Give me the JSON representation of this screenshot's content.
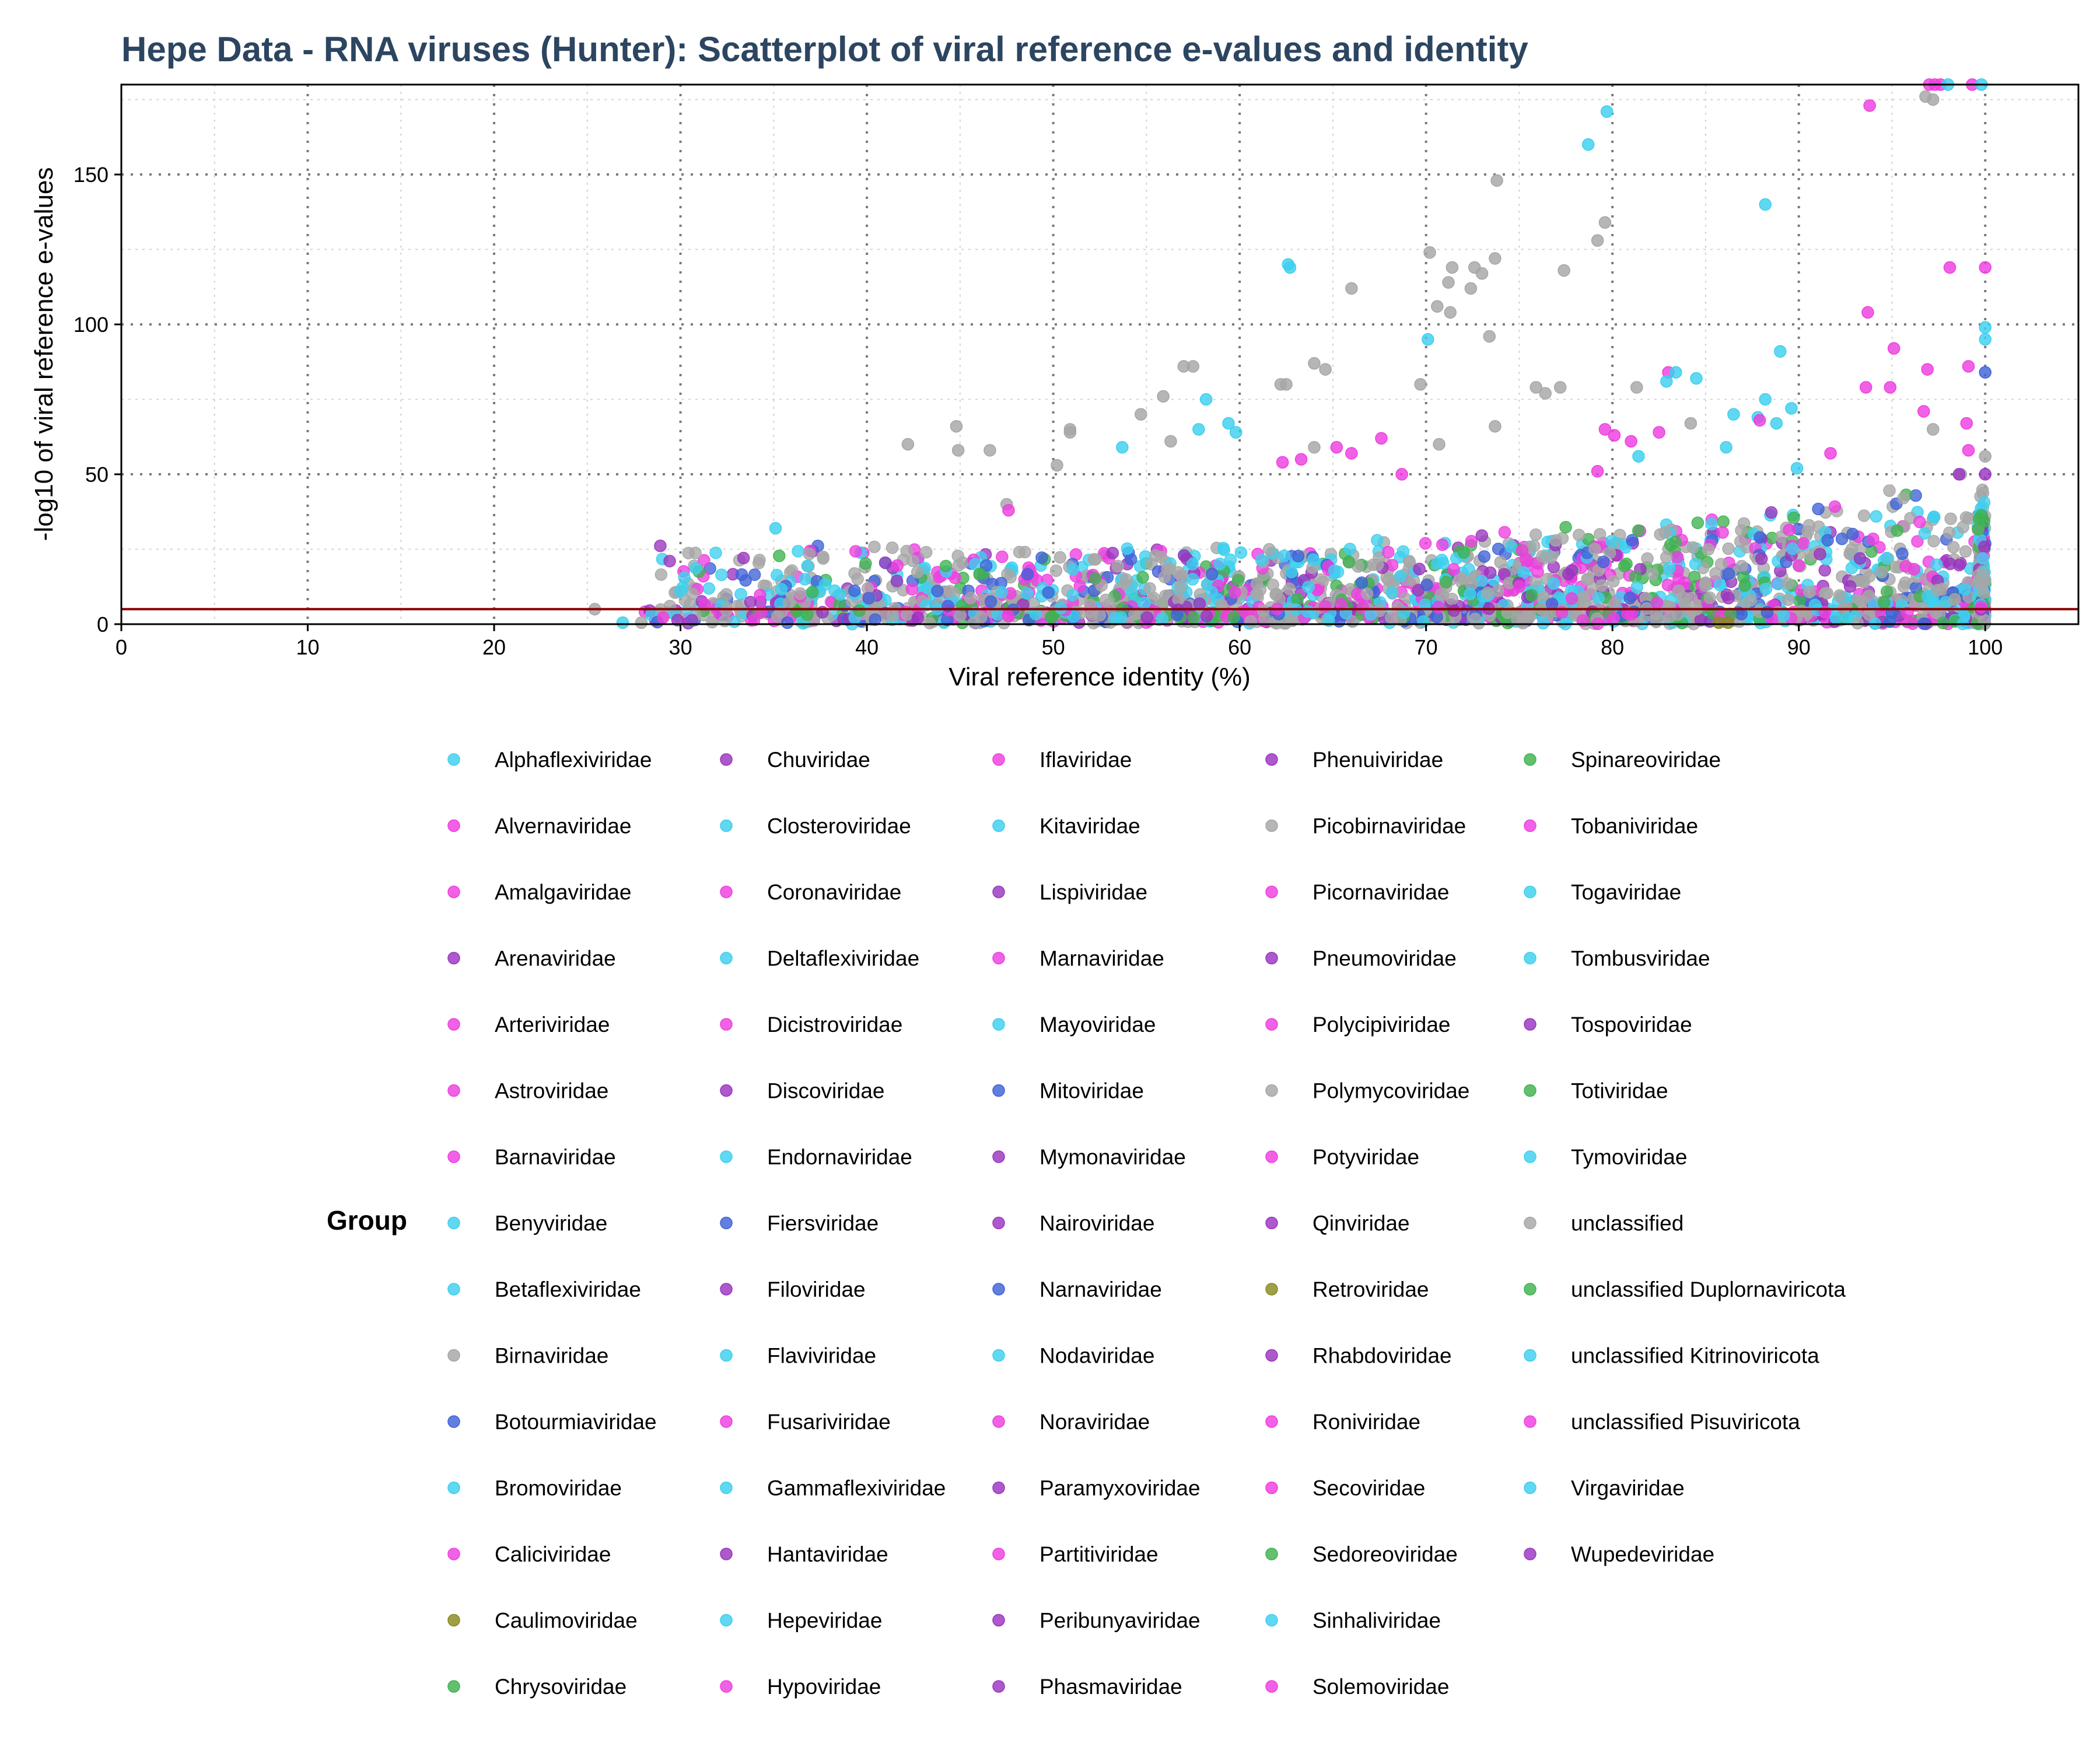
{
  "chart_data": {
    "type": "scatter",
    "title": "Hepe Data - RNA viruses (Hunter): Scatterplot of viral reference e-values and identity",
    "xlabel": "Viral reference identity (%)",
    "ylabel": "-log10 of viral reference e-values",
    "xlim": [
      0,
      105
    ],
    "ylim": [
      0,
      180
    ],
    "x_ticks": [
      "0",
      "10",
      "20",
      "30",
      "40",
      "50",
      "60",
      "70",
      "80",
      "90",
      "100"
    ],
    "y_ticks": [
      "0",
      "50",
      "100",
      "150"
    ],
    "threshold_line": {
      "y": 5,
      "color": "#8b0000"
    },
    "grid": true,
    "legend_title": "Group",
    "legend_position": "bottom",
    "colors": {
      "cyan": "#3dcfee",
      "magenta": "#ee3ee0",
      "purple": "#9a35bf",
      "gray": "#a6a6a6",
      "blue": "#3f63d8",
      "green": "#3fb24f",
      "olive": "#8a8a1f"
    },
    "legend": [
      {
        "name": "Alphaflexiviridae",
        "color": "cyan"
      },
      {
        "name": "Alvernaviridae",
        "color": "magenta"
      },
      {
        "name": "Amalgaviridae",
        "color": "magenta"
      },
      {
        "name": "Arenaviridae",
        "color": "purple"
      },
      {
        "name": "Arteriviridae",
        "color": "magenta"
      },
      {
        "name": "Astroviridae",
        "color": "magenta"
      },
      {
        "name": "Barnaviridae",
        "color": "magenta"
      },
      {
        "name": "Benyviridae",
        "color": "cyan"
      },
      {
        "name": "Betaflexiviridae",
        "color": "cyan"
      },
      {
        "name": "Birnaviridae",
        "color": "gray"
      },
      {
        "name": "Botourmiaviridae",
        "color": "blue"
      },
      {
        "name": "Bromoviridae",
        "color": "cyan"
      },
      {
        "name": "Caliciviridae",
        "color": "magenta"
      },
      {
        "name": "Caulimoviridae",
        "color": "olive"
      },
      {
        "name": "Chrysoviridae",
        "color": "green"
      },
      {
        "name": "Chuviridae",
        "color": "purple"
      },
      {
        "name": "Closteroviridae",
        "color": "cyan"
      },
      {
        "name": "Coronaviridae",
        "color": "magenta"
      },
      {
        "name": "Deltaflexiviridae",
        "color": "cyan"
      },
      {
        "name": "Dicistroviridae",
        "color": "magenta"
      },
      {
        "name": "Discoviridae",
        "color": "purple"
      },
      {
        "name": "Endornaviridae",
        "color": "cyan"
      },
      {
        "name": "Fiersviridae",
        "color": "blue"
      },
      {
        "name": "Filoviridae",
        "color": "purple"
      },
      {
        "name": "Flaviviridae",
        "color": "cyan"
      },
      {
        "name": "Fusariviridae",
        "color": "magenta"
      },
      {
        "name": "Gammaflexiviridae",
        "color": "cyan"
      },
      {
        "name": "Hantaviridae",
        "color": "purple"
      },
      {
        "name": "Hepeviridae",
        "color": "cyan"
      },
      {
        "name": "Hypoviridae",
        "color": "magenta"
      },
      {
        "name": "Iflaviridae",
        "color": "magenta"
      },
      {
        "name": "Kitaviridae",
        "color": "cyan"
      },
      {
        "name": "Lispiviridae",
        "color": "purple"
      },
      {
        "name": "Marnaviridae",
        "color": "magenta"
      },
      {
        "name": "Mayoviridae",
        "color": "cyan"
      },
      {
        "name": "Mitoviridae",
        "color": "blue"
      },
      {
        "name": "Mymonaviridae",
        "color": "purple"
      },
      {
        "name": "Nairoviridae",
        "color": "purple"
      },
      {
        "name": "Narnaviridae",
        "color": "blue"
      },
      {
        "name": "Nodaviridae",
        "color": "cyan"
      },
      {
        "name": "Noraviridae",
        "color": "magenta"
      },
      {
        "name": "Paramyxoviridae",
        "color": "purple"
      },
      {
        "name": "Partitiviridae",
        "color": "magenta"
      },
      {
        "name": "Peribunyaviridae",
        "color": "purple"
      },
      {
        "name": "Phasmaviridae",
        "color": "purple"
      },
      {
        "name": "Phenuiviridae",
        "color": "purple"
      },
      {
        "name": "Picobirnaviridae",
        "color": "gray"
      },
      {
        "name": "Picornaviridae",
        "color": "magenta"
      },
      {
        "name": "Pneumoviridae",
        "color": "purple"
      },
      {
        "name": "Polycipiviridae",
        "color": "magenta"
      },
      {
        "name": "Polymycoviridae",
        "color": "gray"
      },
      {
        "name": "Potyviridae",
        "color": "magenta"
      },
      {
        "name": "Qinviridae",
        "color": "purple"
      },
      {
        "name": "Retroviridae",
        "color": "olive"
      },
      {
        "name": "Rhabdoviridae",
        "color": "purple"
      },
      {
        "name": "Roniviridae",
        "color": "magenta"
      },
      {
        "name": "Secoviridae",
        "color": "magenta"
      },
      {
        "name": "Sedoreoviridae",
        "color": "green"
      },
      {
        "name": "Sinhaliviridae",
        "color": "cyan"
      },
      {
        "name": "Solemoviridae",
        "color": "magenta"
      },
      {
        "name": "Spinareoviridae",
        "color": "green"
      },
      {
        "name": "Tobaniviridae",
        "color": "magenta"
      },
      {
        "name": "Togaviridae",
        "color": "cyan"
      },
      {
        "name": "Tombusviridae",
        "color": "cyan"
      },
      {
        "name": "Tospoviridae",
        "color": "purple"
      },
      {
        "name": "Totiviridae",
        "color": "green"
      },
      {
        "name": "Tymoviridae",
        "color": "cyan"
      },
      {
        "name": "unclassified",
        "color": "gray"
      },
      {
        "name": "unclassified Duplornaviricota",
        "color": "green"
      },
      {
        "name": "unclassified Kitrinoviricota",
        "color": "cyan"
      },
      {
        "name": "unclassified Pisuviricota",
        "color": "magenta"
      },
      {
        "name": "Virgaviridae",
        "color": "cyan"
      },
      {
        "name": "Wupedeviridae",
        "color": "purple"
      }
    ],
    "highlight_points": [
      {
        "x": 97.0,
        "y": 180,
        "color": "magenta"
      },
      {
        "x": 97.3,
        "y": 180,
        "color": "magenta"
      },
      {
        "x": 97.6,
        "y": 180,
        "color": "magenta"
      },
      {
        "x": 98.0,
        "y": 180,
        "color": "cyan"
      },
      {
        "x": 99.3,
        "y": 180,
        "color": "magenta"
      },
      {
        "x": 99.8,
        "y": 180,
        "color": "cyan"
      },
      {
        "x": 96.8,
        "y": 176,
        "color": "gray"
      },
      {
        "x": 97.2,
        "y": 175,
        "color": "gray"
      },
      {
        "x": 93.8,
        "y": 173,
        "color": "magenta"
      },
      {
        "x": 79.7,
        "y": 171,
        "color": "cyan"
      },
      {
        "x": 78.7,
        "y": 160,
        "color": "cyan"
      },
      {
        "x": 73.8,
        "y": 148,
        "color": "gray"
      },
      {
        "x": 88.2,
        "y": 140,
        "color": "cyan"
      },
      {
        "x": 79.6,
        "y": 134,
        "color": "gray"
      },
      {
        "x": 79.2,
        "y": 128,
        "color": "gray"
      },
      {
        "x": 70.2,
        "y": 124,
        "color": "gray"
      },
      {
        "x": 73.7,
        "y": 122,
        "color": "gray"
      },
      {
        "x": 62.6,
        "y": 120,
        "color": "cyan"
      },
      {
        "x": 62.7,
        "y": 119,
        "color": "cyan"
      },
      {
        "x": 71.4,
        "y": 119,
        "color": "gray"
      },
      {
        "x": 72.6,
        "y": 119,
        "color": "gray"
      },
      {
        "x": 98.1,
        "y": 119,
        "color": "magenta"
      },
      {
        "x": 100.0,
        "y": 119,
        "color": "magenta"
      },
      {
        "x": 77.4,
        "y": 118,
        "color": "gray"
      },
      {
        "x": 73.0,
        "y": 117,
        "color": "gray"
      },
      {
        "x": 71.2,
        "y": 114,
        "color": "gray"
      },
      {
        "x": 72.4,
        "y": 112,
        "color": "gray"
      },
      {
        "x": 66.0,
        "y": 112,
        "color": "gray"
      },
      {
        "x": 70.6,
        "y": 106,
        "color": "gray"
      },
      {
        "x": 71.3,
        "y": 104,
        "color": "gray"
      },
      {
        "x": 93.7,
        "y": 104,
        "color": "magenta"
      },
      {
        "x": 100.0,
        "y": 99,
        "color": "cyan"
      },
      {
        "x": 73.4,
        "y": 96,
        "color": "gray"
      },
      {
        "x": 70.1,
        "y": 95,
        "color": "cyan"
      },
      {
        "x": 100.0,
        "y": 95,
        "color": "cyan"
      },
      {
        "x": 95.1,
        "y": 92,
        "color": "magenta"
      },
      {
        "x": 89.0,
        "y": 91,
        "color": "cyan"
      },
      {
        "x": 64.0,
        "y": 87,
        "color": "gray"
      },
      {
        "x": 57.0,
        "y": 86,
        "color": "gray"
      },
      {
        "x": 57.5,
        "y": 86,
        "color": "gray"
      },
      {
        "x": 64.6,
        "y": 85,
        "color": "gray"
      },
      {
        "x": 99.1,
        "y": 86,
        "color": "magenta"
      },
      {
        "x": 83.0,
        "y": 84,
        "color": "magenta"
      },
      {
        "x": 83.4,
        "y": 84,
        "color": "cyan"
      },
      {
        "x": 100.0,
        "y": 84,
        "color": "blue"
      },
      {
        "x": 96.9,
        "y": 85,
        "color": "magenta"
      },
      {
        "x": 84.5,
        "y": 82,
        "color": "cyan"
      },
      {
        "x": 82.9,
        "y": 81,
        "color": "cyan"
      },
      {
        "x": 62.2,
        "y": 80,
        "color": "gray"
      },
      {
        "x": 62.5,
        "y": 80,
        "color": "gray"
      },
      {
        "x": 69.7,
        "y": 80,
        "color": "gray"
      },
      {
        "x": 75.9,
        "y": 79,
        "color": "gray"
      },
      {
        "x": 77.2,
        "y": 79,
        "color": "gray"
      },
      {
        "x": 76.4,
        "y": 77,
        "color": "gray"
      },
      {
        "x": 81.3,
        "y": 79,
        "color": "gray"
      },
      {
        "x": 93.6,
        "y": 79,
        "color": "magenta"
      },
      {
        "x": 94.9,
        "y": 79,
        "color": "magenta"
      },
      {
        "x": 55.9,
        "y": 76,
        "color": "gray"
      },
      {
        "x": 58.2,
        "y": 75,
        "color": "cyan"
      },
      {
        "x": 88.2,
        "y": 75,
        "color": "cyan"
      },
      {
        "x": 89.6,
        "y": 72,
        "color": "cyan"
      },
      {
        "x": 96.7,
        "y": 71,
        "color": "magenta"
      },
      {
        "x": 54.7,
        "y": 70,
        "color": "gray"
      },
      {
        "x": 86.5,
        "y": 70,
        "color": "cyan"
      },
      {
        "x": 87.8,
        "y": 69,
        "color": "cyan"
      },
      {
        "x": 87.9,
        "y": 68,
        "color": "magenta"
      },
      {
        "x": 88.8,
        "y": 67,
        "color": "cyan"
      },
      {
        "x": 59.4,
        "y": 67,
        "color": "cyan"
      },
      {
        "x": 73.7,
        "y": 66,
        "color": "gray"
      },
      {
        "x": 44.8,
        "y": 66,
        "color": "gray"
      },
      {
        "x": 79.6,
        "y": 65,
        "color": "magenta"
      },
      {
        "x": 84.2,
        "y": 67,
        "color": "gray"
      },
      {
        "x": 80.1,
        "y": 63,
        "color": "magenta"
      },
      {
        "x": 82.5,
        "y": 64,
        "color": "magenta"
      },
      {
        "x": 97.2,
        "y": 65,
        "color": "gray"
      },
      {
        "x": 50.9,
        "y": 65,
        "color": "gray"
      },
      {
        "x": 50.9,
        "y": 64,
        "color": "gray"
      },
      {
        "x": 59.8,
        "y": 64,
        "color": "cyan"
      },
      {
        "x": 56.3,
        "y": 61,
        "color": "gray"
      },
      {
        "x": 57.8,
        "y": 65,
        "color": "cyan"
      },
      {
        "x": 67.6,
        "y": 62,
        "color": "magenta"
      },
      {
        "x": 81.0,
        "y": 61,
        "color": "magenta"
      },
      {
        "x": 42.2,
        "y": 60,
        "color": "gray"
      },
      {
        "x": 70.7,
        "y": 60,
        "color": "gray"
      },
      {
        "x": 53.7,
        "y": 59,
        "color": "cyan"
      },
      {
        "x": 64.0,
        "y": 59,
        "color": "gray"
      },
      {
        "x": 65.2,
        "y": 59,
        "color": "magenta"
      },
      {
        "x": 86.1,
        "y": 59,
        "color": "cyan"
      },
      {
        "x": 99.1,
        "y": 58,
        "color": "magenta"
      },
      {
        "x": 91.7,
        "y": 57,
        "color": "magenta"
      },
      {
        "x": 44.9,
        "y": 58,
        "color": "gray"
      },
      {
        "x": 46.6,
        "y": 58,
        "color": "gray"
      },
      {
        "x": 81.4,
        "y": 56,
        "color": "cyan"
      },
      {
        "x": 62.3,
        "y": 54,
        "color": "magenta"
      },
      {
        "x": 63.3,
        "y": 55,
        "color": "magenta"
      },
      {
        "x": 66.0,
        "y": 57,
        "color": "magenta"
      },
      {
        "x": 100.0,
        "y": 56,
        "color": "gray"
      },
      {
        "x": 99.0,
        "y": 67,
        "color": "magenta"
      },
      {
        "x": 50.2,
        "y": 53,
        "color": "gray"
      },
      {
        "x": 89.9,
        "y": 52,
        "color": "cyan"
      },
      {
        "x": 79.2,
        "y": 51,
        "color": "magenta"
      },
      {
        "x": 68.7,
        "y": 50,
        "color": "magenta"
      },
      {
        "x": 98.6,
        "y": 50,
        "color": "purple"
      },
      {
        "x": 100.0,
        "y": 50,
        "color": "purple"
      },
      {
        "x": 47.5,
        "y": 40,
        "color": "gray"
      },
      {
        "x": 47.6,
        "y": 38,
        "color": "magenta"
      },
      {
        "x": 35.1,
        "y": 32,
        "color": "cyan"
      },
      {
        "x": 30.0,
        "y": 11,
        "color": "cyan"
      },
      {
        "x": 25.4,
        "y": 5,
        "color": "gray"
      },
      {
        "x": 26.9,
        "y": 0.5,
        "color": "cyan"
      },
      {
        "x": 27.9,
        "y": 0.5,
        "color": "gray"
      },
      {
        "x": 85.7,
        "y": 0.5,
        "color": "olive"
      },
      {
        "x": 86.2,
        "y": 0.5,
        "color": "olive"
      },
      {
        "x": 92.0,
        "y": 2,
        "color": "cyan"
      },
      {
        "x": 92.6,
        "y": 2,
        "color": "cyan"
      },
      {
        "x": 91.4,
        "y": 4,
        "color": "magenta"
      },
      {
        "x": 88.3,
        "y": 4,
        "color": "blue"
      }
    ],
    "dense_band": {
      "description_x": [
        28,
        100
      ],
      "description_y": [
        0,
        50
      ],
      "color_mix": [
        "gray",
        "gray",
        "gray",
        "gray",
        "cyan",
        "cyan",
        "magenta",
        "magenta",
        "purple",
        "blue",
        "green"
      ],
      "count": 2600,
      "seed": 7
    }
  }
}
